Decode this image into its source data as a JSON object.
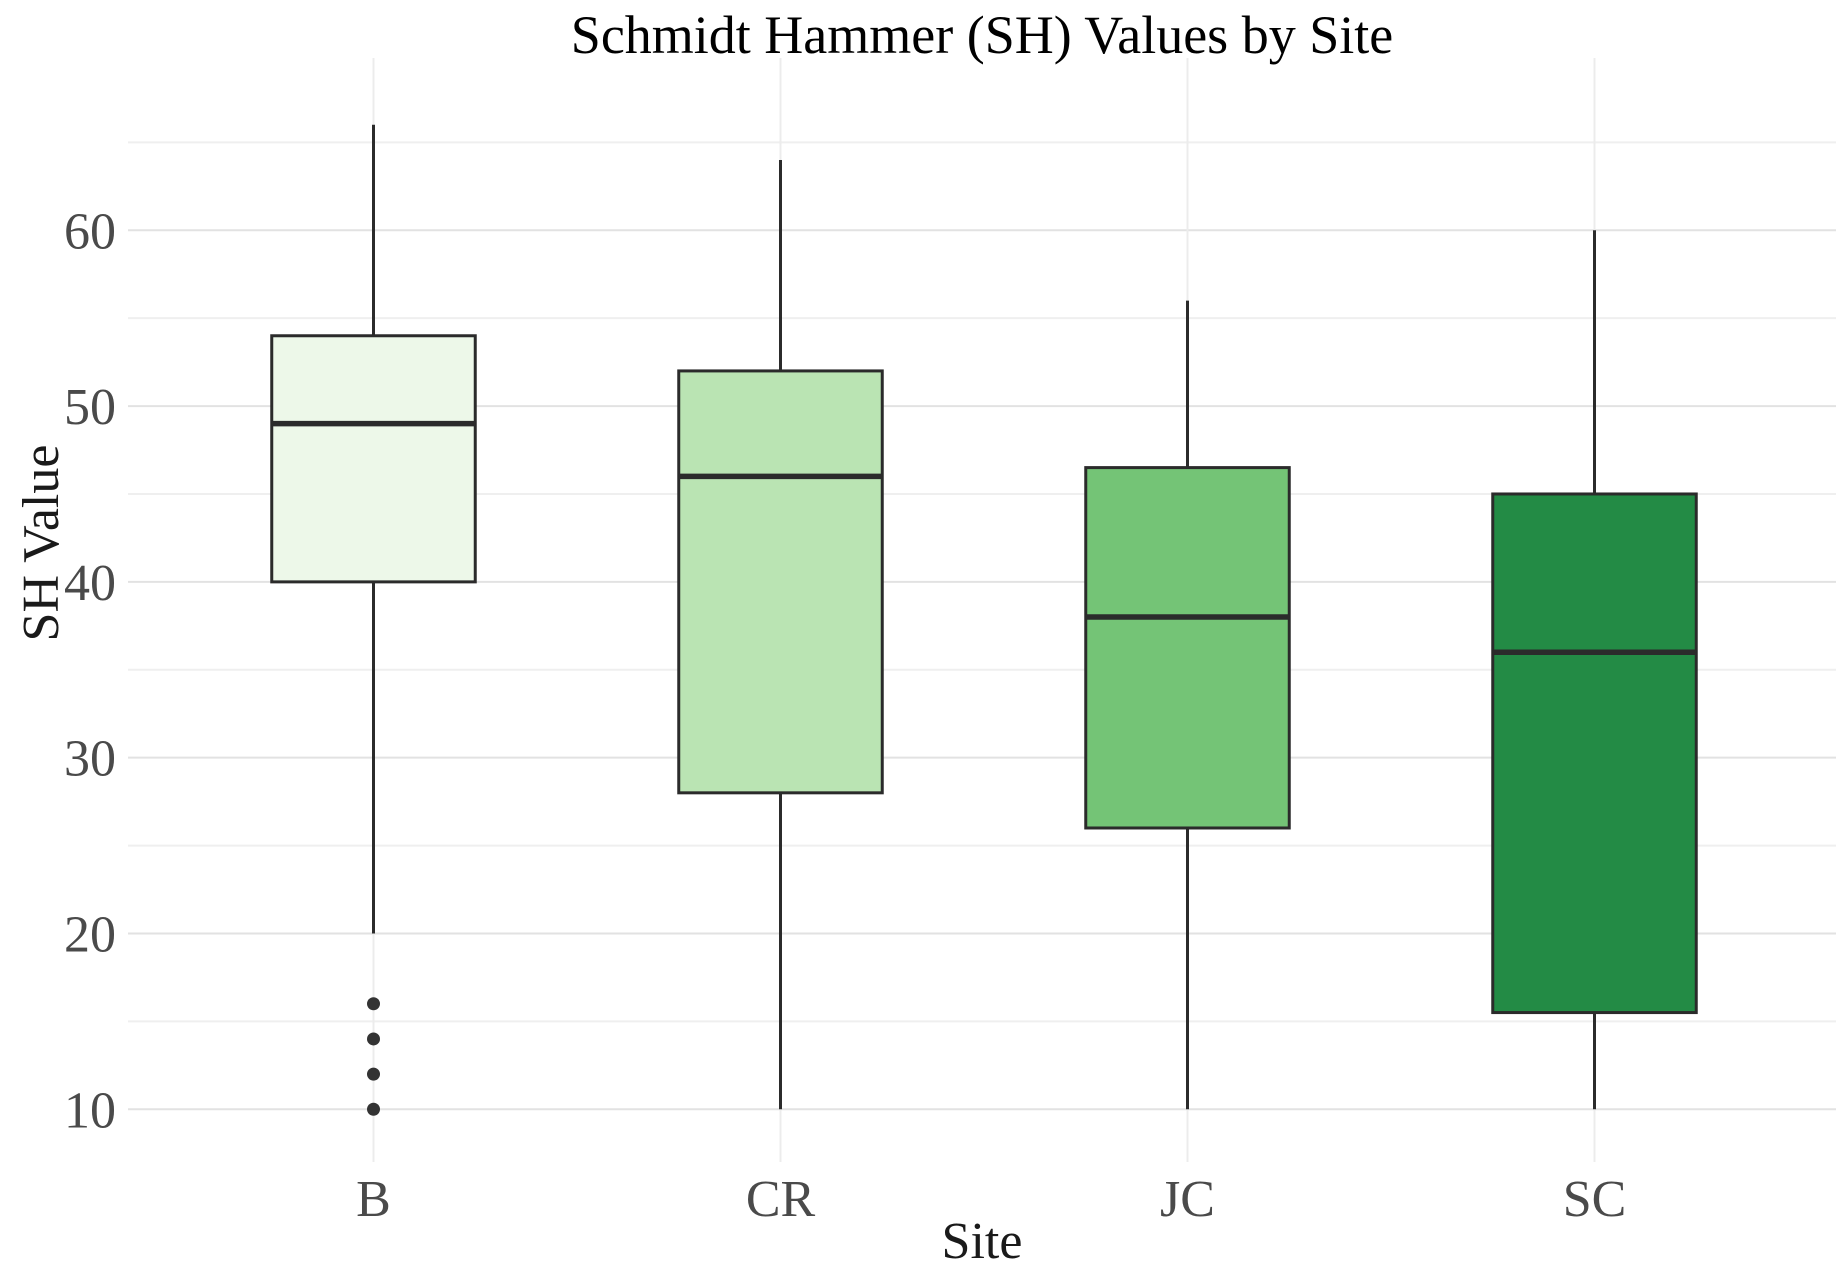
{
  "chart_data": {
    "type": "boxplot",
    "title": "Schmidt Hammer (SH) Values by Site",
    "xlabel": "Site",
    "ylabel": "SH Value",
    "categories": [
      "B",
      "CR",
      "JC",
      "SC"
    ],
    "yticks": [
      10,
      20,
      30,
      40,
      50,
      60
    ],
    "minor_ticks": [
      15,
      25,
      35,
      45,
      55,
      65
    ],
    "ylim": [
      7,
      69.8
    ],
    "grid": "horizontal major and minor lines, one vertical line per category",
    "legend": "none",
    "boxes": [
      {
        "category": "B",
        "whisker_low": 20,
        "q1": 40,
        "median": 49,
        "q3": 54,
        "whisker_high": 66,
        "outliers": [
          16,
          14,
          12,
          10
        ],
        "fill": "#edf8e9"
      },
      {
        "category": "CR",
        "whisker_low": 10,
        "q1": 28,
        "median": 46,
        "q3": 52,
        "whisker_high": 64,
        "outliers": [],
        "fill": "#bae4b3"
      },
      {
        "category": "JC",
        "whisker_low": 10,
        "q1": 26,
        "median": 38,
        "q3": 46.5,
        "whisker_high": 56,
        "outliers": [],
        "fill": "#74c476"
      },
      {
        "category": "SC",
        "whisker_low": 10,
        "q1": 15.5,
        "median": 36,
        "q3": 45,
        "whisker_high": 60,
        "outliers": [],
        "fill": "#238b45"
      }
    ],
    "colors": {
      "box_stroke": "#2b2b2b",
      "median_line": "#2b2b2b",
      "whisker": "#2b2b2b",
      "outlier": "#333333",
      "grid_major": "#e2e2e2",
      "grid_minor": "#efefef",
      "grid_vertical": "#ececec",
      "tick_text": "#4a4a4a",
      "background": "#ffffff"
    }
  }
}
